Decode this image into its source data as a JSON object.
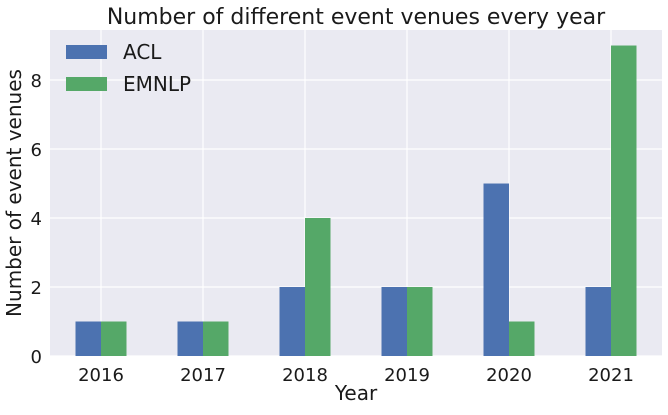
{
  "chart_data": {
    "type": "bar",
    "title": "Number of different event venues every year",
    "xlabel": "Year",
    "ylabel": "Number of event venues",
    "categories": [
      "2016",
      "2017",
      "2018",
      "2019",
      "2020",
      "2021"
    ],
    "series": [
      {
        "name": "ACL",
        "values": [
          1,
          1,
          2,
          2,
          5,
          2
        ],
        "color": "#4c72b0"
      },
      {
        "name": "EMNLP",
        "values": [
          1,
          1,
          4,
          2,
          1,
          9
        ],
        "color": "#55a868"
      }
    ],
    "ylim": [
      0,
      9.45
    ],
    "yticks": [
      0,
      2,
      4,
      6,
      8
    ],
    "grid": true,
    "legend_position": "top-left",
    "style": {
      "plot_background": "#eaeaf2",
      "grid_color": "#ffffff"
    }
  }
}
